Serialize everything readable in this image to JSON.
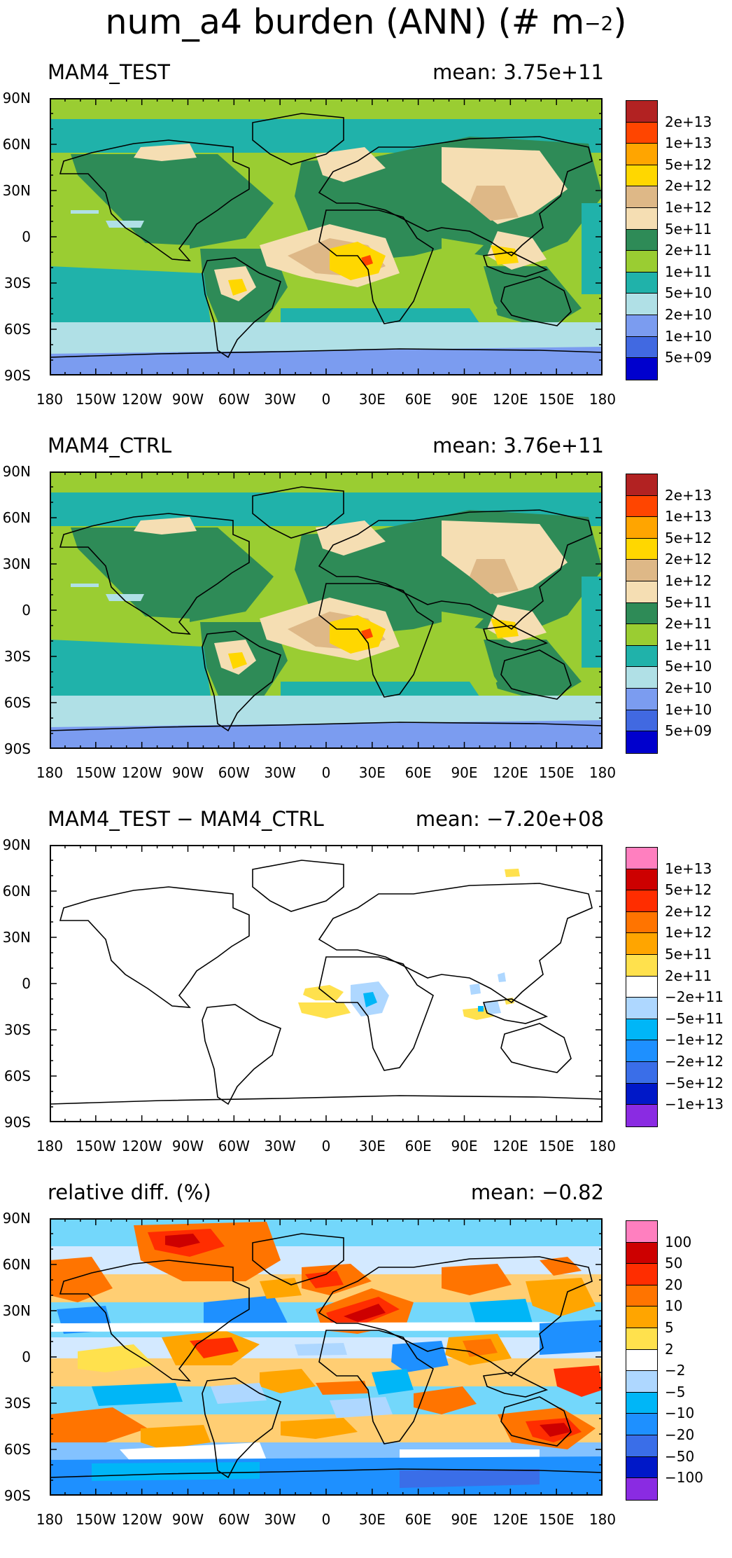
{
  "title": "num_a4 burden (ANN) (# m",
  "title_unit_exp": "−2",
  "y_ticks": [
    "90N",
    "60N",
    "30N",
    "0",
    "30S",
    "60S",
    "90S"
  ],
  "x_ticks": [
    "180",
    "150W",
    "120W",
    "90W",
    "60W",
    "30W",
    "0",
    "30E",
    "60E",
    "90E",
    "120E",
    "150E",
    "180"
  ],
  "panels": [
    {
      "label": "MAM4_TEST",
      "mean": "mean:  3.75e+11",
      "kind": "abs",
      "colorbar": {
        "colors": [
          "#b22222",
          "#ff4500",
          "#ffa500",
          "#ffd700",
          "#deb887",
          "#f5deb3",
          "#2e8b57",
          "#9acd32",
          "#20b2aa",
          "#b0e0e6",
          "#7b9cf0",
          "#4169e1",
          "#0000cd"
        ],
        "labels": [
          "2e+13",
          "1e+13",
          "5e+12",
          "2e+12",
          "1e+12",
          "5e+11",
          "2e+11",
          "1e+11",
          "5e+10",
          "2e+10",
          "1e+10",
          "5e+09"
        ]
      }
    },
    {
      "label": "MAM4_CTRL",
      "mean": "mean:  3.76e+11",
      "kind": "abs",
      "colorbar": {
        "colors": [
          "#b22222",
          "#ff4500",
          "#ffa500",
          "#ffd700",
          "#deb887",
          "#f5deb3",
          "#2e8b57",
          "#9acd32",
          "#20b2aa",
          "#b0e0e6",
          "#7b9cf0",
          "#4169e1",
          "#0000cd"
        ],
        "labels": [
          "2e+13",
          "1e+13",
          "5e+12",
          "2e+12",
          "1e+12",
          "5e+11",
          "2e+11",
          "1e+11",
          "5e+10",
          "2e+10",
          "1e+10",
          "5e+09"
        ]
      }
    },
    {
      "label": "MAM4_TEST − MAM4_CTRL",
      "mean": "mean: −7.20e+08",
      "kind": "diff",
      "colorbar": {
        "colors": [
          "#ff7fbf",
          "#cd0000",
          "#ff2d00",
          "#ff7400",
          "#ffa500",
          "#ffe14d",
          "#ffffff",
          "#aed7ff",
          "#00b6f7",
          "#1e90ff",
          "#3a6ee8",
          "#0018c8",
          "#8a2be2"
        ],
        "labels": [
          "1e+13",
          "5e+12",
          "2e+12",
          "1e+12",
          "5e+11",
          "2e+11",
          "−2e+11",
          "−5e+11",
          "−1e+12",
          "−2e+12",
          "−5e+12",
          "−1e+13"
        ]
      }
    },
    {
      "label": "relative diff. (%)",
      "mean": "mean: −0.82",
      "kind": "rel",
      "colorbar": {
        "colors": [
          "#ff7fbf",
          "#cd0000",
          "#ff2d00",
          "#ff7400",
          "#ffa500",
          "#ffe14d",
          "#ffffff",
          "#aed7ff",
          "#00b6f7",
          "#1e90ff",
          "#3a6ee8",
          "#0018c8",
          "#8a2be2"
        ],
        "labels": [
          "100",
          "50",
          "20",
          "10",
          "5",
          "2",
          "−2",
          "−5",
          "−10",
          "−20",
          "−50",
          "−100"
        ]
      }
    }
  ]
}
